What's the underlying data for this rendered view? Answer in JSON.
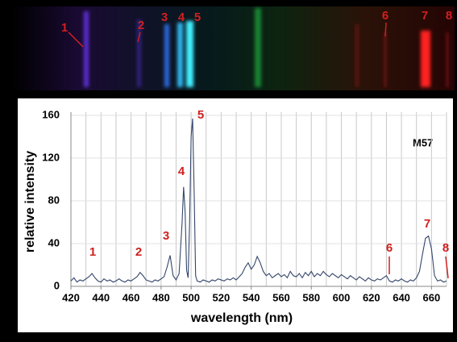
{
  "chart_data": {
    "type": "line",
    "xlabel": "wavelength (nm)",
    "ylabel": "relative intensity",
    "note": "M57",
    "annotations": [
      "1",
      "2",
      "3",
      "4",
      "5",
      "6",
      "7",
      "8"
    ],
    "x": [
      420,
      422,
      424,
      426,
      428,
      430,
      432,
      434,
      436,
      438,
      440,
      442,
      444,
      446,
      448,
      450,
      452,
      454,
      456,
      458,
      460,
      462,
      464,
      466,
      468,
      470,
      472,
      474,
      476,
      478,
      480,
      482,
      484,
      486,
      488,
      490,
      492,
      494,
      495,
      496,
      497,
      498,
      499,
      500,
      501,
      502,
      503,
      504,
      506,
      508,
      510,
      512,
      514,
      516,
      518,
      520,
      522,
      524,
      526,
      528,
      530,
      532,
      534,
      536,
      538,
      540,
      542,
      544,
      546,
      548,
      550,
      552,
      554,
      556,
      558,
      560,
      562,
      564,
      566,
      568,
      570,
      572,
      574,
      576,
      578,
      580,
      582,
      584,
      586,
      588,
      590,
      592,
      594,
      596,
      598,
      600,
      602,
      604,
      606,
      608,
      610,
      612,
      614,
      616,
      618,
      620,
      622,
      624,
      626,
      628,
      630,
      632,
      634,
      636,
      638,
      640,
      642,
      644,
      646,
      648,
      650,
      652,
      654,
      656,
      658,
      660,
      662,
      664,
      666,
      668,
      670
    ],
    "series": [
      {
        "color": "#34466b",
        "values": [
          5,
          8,
          4,
          6,
          5,
          7,
          9,
          12,
          8,
          5,
          4,
          7,
          5,
          6,
          4,
          5,
          7,
          5,
          4,
          6,
          5,
          7,
          9,
          13,
          10,
          6,
          5,
          4,
          6,
          5,
          7,
          9,
          18,
          29,
          10,
          6,
          12,
          60,
          93,
          70,
          15,
          8,
          60,
          140,
          157,
          90,
          10,
          5,
          4,
          6,
          5,
          4,
          6,
          5,
          7,
          6,
          5,
          7,
          6,
          8,
          6,
          9,
          12,
          18,
          22,
          16,
          20,
          28,
          22,
          14,
          10,
          12,
          8,
          10,
          12,
          9,
          11,
          8,
          14,
          10,
          9,
          12,
          8,
          13,
          10,
          14,
          9,
          12,
          10,
          14,
          11,
          9,
          12,
          10,
          8,
          11,
          9,
          7,
          10,
          8,
          6,
          9,
          7,
          5,
          8,
          6,
          5,
          7,
          6,
          8,
          10,
          5,
          4,
          6,
          5,
          7,
          5,
          4,
          6,
          5,
          8,
          14,
          30,
          45,
          47,
          35,
          10,
          5,
          6,
          4,
          5
        ]
      }
    ],
    "xlim": [
      420,
      670
    ],
    "xticks": [
      420,
      440,
      460,
      480,
      500,
      520,
      540,
      560,
      580,
      600,
      620,
      640,
      660
    ],
    "xgrid": [
      430,
      440,
      450,
      460,
      470,
      480,
      490,
      500,
      510,
      520,
      530,
      540,
      550,
      560,
      570,
      580,
      590,
      600,
      610,
      620,
      630,
      640,
      650,
      660,
      670
    ],
    "ylim": [
      0,
      160
    ],
    "yticks": [
      0,
      40,
      80,
      120,
      160
    ],
    "grid": true
  }
}
